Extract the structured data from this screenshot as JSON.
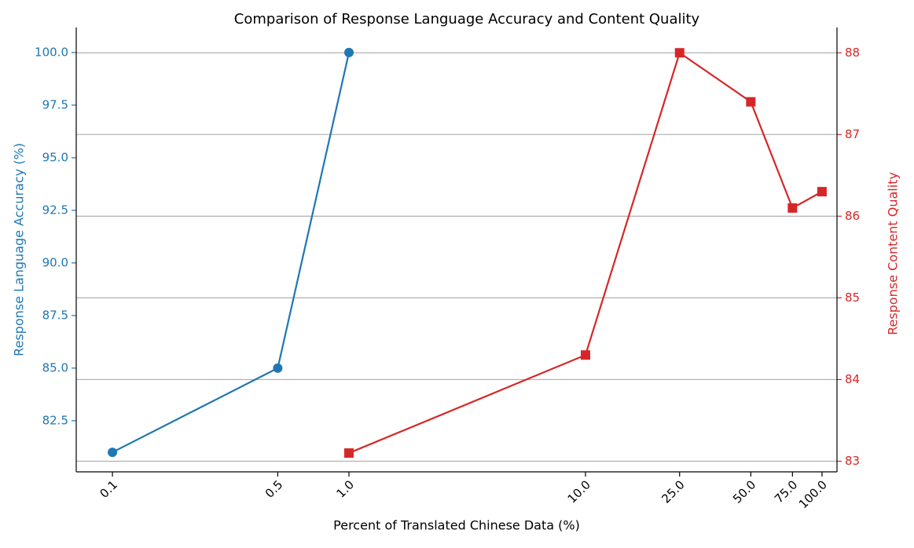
{
  "chart_data": {
    "type": "line",
    "title": "Comparison of Response Language Accuracy and Content Quality",
    "xlabel": "Percent of Translated Chinese Data (%)",
    "ylabel": "Response Language Accuracy (%)",
    "y2label": "Response Content Quality",
    "xscale": "log",
    "xlim": [
      0.0703,
      115.7
    ],
    "xticks": [
      0.1,
      0.5,
      {
        "value": 1,
        "label": "1.0"
      },
      {
        "value": 10,
        "label": "10.0"
      },
      {
        "value": 25,
        "label": "25.0"
      },
      {
        "value": 50,
        "label": "50.0"
      },
      {
        "value": 75,
        "label": "75.0"
      },
      {
        "value": 100,
        "label": "100.0"
      }
    ],
    "ylim": [
      80.07,
      101.19
    ],
    "yticks": [
      82.5,
      {
        "value": 85,
        "label": "85.0"
      },
      87.5,
      {
        "value": 90,
        "label": "90.0"
      },
      92.5,
      {
        "value": 95,
        "label": "95.0"
      },
      97.5,
      {
        "value": 100,
        "label": "100.0"
      }
    ],
    "y2lim": [
      82.87,
      88.31
    ],
    "y2ticks": [
      83,
      84,
      85,
      86,
      87,
      88
    ],
    "grid": "y2",
    "series": [
      {
        "name": "Response Language Accuracy (%)",
        "color": "#1f77b4",
        "marker": "circle",
        "axis": "y",
        "x": [
          0.1,
          0.5,
          1
        ],
        "values": [
          81,
          85,
          100
        ]
      },
      {
        "name": "Response Content Quality",
        "color": "#d62728",
        "marker": "square",
        "axis": "y2",
        "x": [
          1,
          10,
          25,
          50,
          75,
          100
        ],
        "values": [
          83.1,
          84.3,
          88,
          87.4,
          86.1,
          86.3
        ]
      }
    ]
  }
}
